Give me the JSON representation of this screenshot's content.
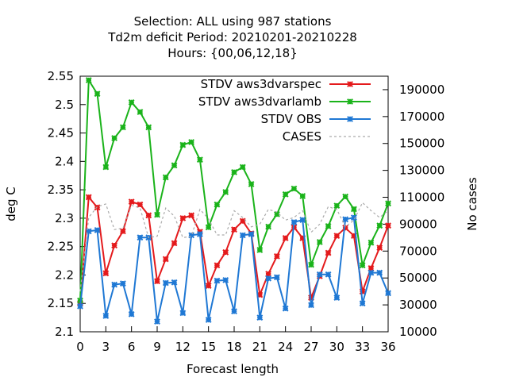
{
  "chart_data": {
    "type": "line",
    "title_lines": [
      "Selection: ALL using   987 stations",
      "Td2m deficit   Period: 20210201-20210228",
      "Hours: {00,06,12,18}"
    ],
    "xlabel": "Forecast length",
    "ylabel": "deg C",
    "y2label": "No cases",
    "xlim": [
      0,
      36
    ],
    "ylim": [
      2.1,
      2.55
    ],
    "y2lim": [
      10000,
      200000
    ],
    "x_ticks": [
      "0",
      "3",
      "6",
      "9",
      "12",
      "15",
      "18",
      "21",
      "24",
      "27",
      "30",
      "33",
      "36"
    ],
    "y_ticks": [
      "2.1",
      "2.15",
      "2.2",
      "2.25",
      "2.3",
      "2.35",
      "2.4",
      "2.45",
      "2.5",
      "2.55"
    ],
    "y2_ticks": [
      "10000",
      "30000",
      "50000",
      "70000",
      "90000",
      "110000",
      "130000",
      "150000",
      "170000",
      "190000"
    ],
    "grid": false,
    "legend_position": "top-right",
    "x": [
      0,
      1,
      2,
      3,
      4,
      5,
      6,
      7,
      8,
      9,
      10,
      11,
      12,
      13,
      14,
      15,
      16,
      17,
      18,
      19,
      20,
      21,
      22,
      23,
      24,
      25,
      26,
      27,
      28,
      29,
      30,
      31,
      32,
      33,
      34,
      35,
      36
    ],
    "series": [
      {
        "name": "STDV aws3dvarspec",
        "color": "#e41a1c",
        "marker": "x",
        "axis": "left",
        "values": [
          2.15,
          2.337,
          2.319,
          2.203,
          2.252,
          2.277,
          2.329,
          2.324,
          2.305,
          2.189,
          2.228,
          2.256,
          2.3,
          2.305,
          2.276,
          2.181,
          2.217,
          2.24,
          2.28,
          2.295,
          2.273,
          2.165,
          2.202,
          2.233,
          2.265,
          2.284,
          2.265,
          2.16,
          2.198,
          2.239,
          2.269,
          2.283,
          2.269,
          2.171,
          2.212,
          2.248,
          2.287
        ]
      },
      {
        "name": "STDV aws3dvarlamb",
        "color": "#1ab31a",
        "marker": "x",
        "axis": "left",
        "values": [
          2.155,
          2.543,
          2.519,
          2.39,
          2.441,
          2.46,
          2.504,
          2.487,
          2.46,
          2.306,
          2.372,
          2.393,
          2.429,
          2.434,
          2.403,
          2.284,
          2.324,
          2.346,
          2.381,
          2.39,
          2.36,
          2.244,
          2.285,
          2.307,
          2.342,
          2.352,
          2.339,
          2.218,
          2.258,
          2.286,
          2.322,
          2.338,
          2.316,
          2.217,
          2.257,
          2.287,
          2.326
        ]
      },
      {
        "name": "STDV OBS",
        "color": "#1f78d4",
        "marker": "x",
        "axis": "left",
        "values": [
          2.145,
          2.277,
          2.279,
          2.128,
          2.183,
          2.185,
          2.131,
          2.266,
          2.266,
          2.118,
          2.186,
          2.187,
          2.133,
          2.27,
          2.272,
          2.121,
          2.19,
          2.191,
          2.136,
          2.27,
          2.272,
          2.125,
          2.194,
          2.196,
          2.141,
          2.293,
          2.297,
          2.147,
          2.201,
          2.201,
          2.16,
          2.298,
          2.301,
          2.15,
          2.204,
          2.204,
          2.168
        ]
      },
      {
        "name": "CASES",
        "color": "#aaaaaa",
        "marker": "none",
        "dashed": true,
        "axis": "right",
        "values": [
          40000,
          95000,
          103000,
          105000,
          86000,
          87000,
          104000,
          102000,
          80000,
          81000,
          102000,
          96000,
          80000,
          81000,
          101000,
          94000,
          82000,
          82000,
          100000,
          95000,
          88000,
          90000,
          101000,
          99000,
          93000,
          95000,
          100000,
          84000,
          90000,
          103000,
          101000,
          88000,
          93000,
          106000,
          100000,
          95000,
          100000
        ]
      }
    ]
  }
}
